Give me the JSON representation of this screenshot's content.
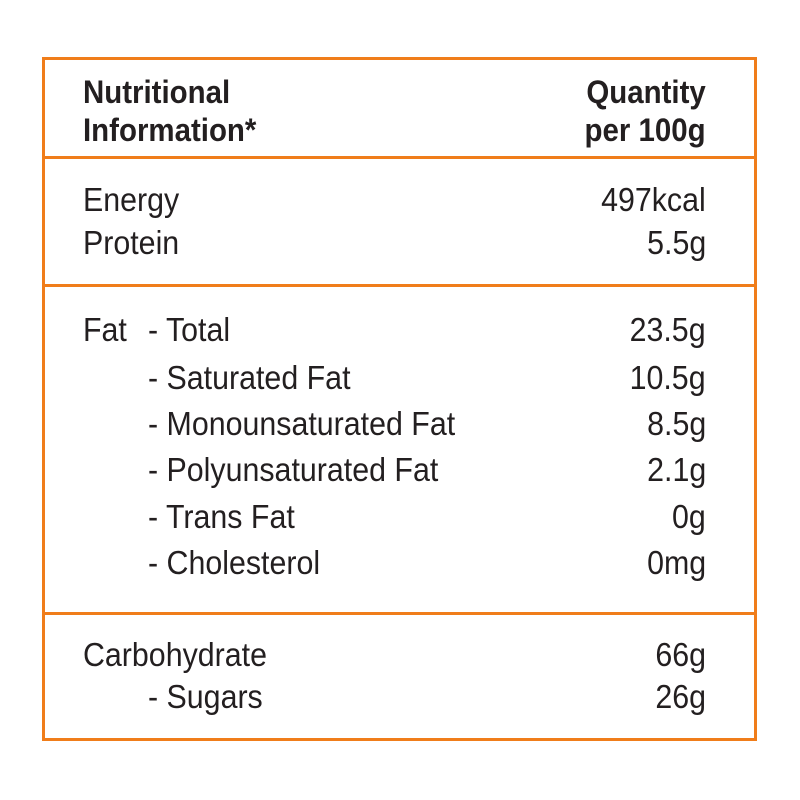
{
  "header": {
    "title": [
      "Nutritional",
      "Information*"
    ],
    "quantity": [
      "Quantity",
      "per 100g"
    ]
  },
  "sections": [
    {
      "rows": [
        {
          "label": "Energy",
          "value": "497kcal"
        },
        {
          "label": "Protein",
          "value": "5.5g"
        }
      ]
    },
    {
      "group": "Fat",
      "rows": [
        {
          "label": "- Total",
          "value": "23.5g"
        },
        {
          "label": "- Saturated Fat",
          "value": "10.5g"
        },
        {
          "label": "- Monounsaturated Fat",
          "value": "8.5g"
        },
        {
          "label": "- Polyunsaturated Fat",
          "value": "2.1g"
        },
        {
          "label": "- Trans Fat",
          "value": "0g"
        },
        {
          "label": "- Cholesterol",
          "value": "0mg"
        }
      ]
    },
    {
      "rows": [
        {
          "label": "Carbohydrate",
          "value": "66g"
        },
        {
          "label": "- Sugars",
          "value": "26g"
        }
      ]
    }
  ]
}
